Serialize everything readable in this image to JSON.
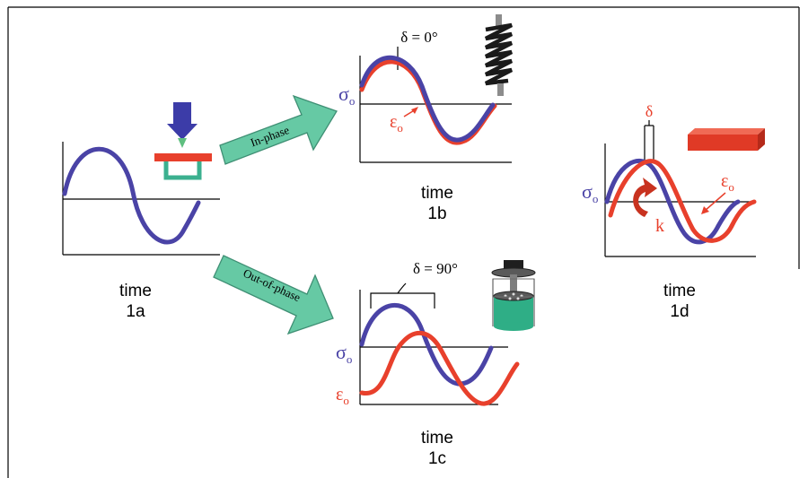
{
  "colors": {
    "stress_wave": "#4a43a6",
    "strain_wave": "#e8402c",
    "arrow_fill": "#66c9a4",
    "arrow_stroke": "#3f8f74",
    "press_arrow": "#3c3ca8",
    "press_tip": "#5fbf80",
    "sample_bar": "#e8402c",
    "sample_frame": "#3bb08f",
    "spring_dark": "#1a1a1a",
    "spring_gray": "#8c8c8c",
    "dashpot_green": "#2fae86",
    "dashpot_gray": "#7f7f7f",
    "rotation_arrow": "#c8321f",
    "block_red": "#e03a26"
  },
  "panel_1a": {
    "time_label": "time",
    "id_label": "1a"
  },
  "arrow_in_phase": {
    "label": "In-phase"
  },
  "arrow_out_of_phase": {
    "label": "Out-of-phase"
  },
  "panel_1b": {
    "delta_label": "δ = 0°",
    "stress_symbol": "σ",
    "stress_sub": "o",
    "strain_symbol": "ε",
    "strain_sub": "o",
    "time_label": "time",
    "id_label": "1b"
  },
  "panel_1c": {
    "delta_label": "δ = 90°",
    "stress_symbol": "σ",
    "stress_sub": "o",
    "strain_symbol": "ε",
    "strain_sub": "o",
    "time_label": "time",
    "id_label": "1c"
  },
  "panel_1d": {
    "delta_label": "δ",
    "stress_symbol": "σ",
    "stress_sub": "o",
    "strain_symbol": "ε",
    "strain_sub": "o",
    "k_label": "k",
    "time_label": "time",
    "id_label": "1d"
  },
  "icons": {
    "press": "press-arrow-icon",
    "spring": "spring-icon",
    "dashpot": "dashpot-icon",
    "block": "red-block-icon",
    "rotation": "rotation-arrow-icon"
  }
}
